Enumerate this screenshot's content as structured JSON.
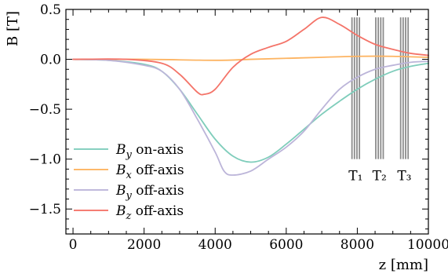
{
  "chart_data": {
    "type": "line",
    "xlabel": "z [mm]",
    "ylabel": "B [T]",
    "xlim": [
      -200,
      10000
    ],
    "ylim": [
      -1.75,
      0.5
    ],
    "x_ticks": [
      0,
      2000,
      4000,
      6000,
      8000,
      10000
    ],
    "y_ticks": [
      0.5,
      0.0,
      -0.5,
      -1.0,
      -1.5
    ],
    "x_tick_labels": [
      "0",
      "2000",
      "4000",
      "6000",
      "8000",
      "10000"
    ],
    "y_tick_labels": [
      "0.5",
      "0.0",
      "−0.5",
      "−1.0",
      "−1.5"
    ],
    "legend_position": "lower-left",
    "series": [
      {
        "name": "B_y on-axis",
        "legend_main": "B",
        "legend_sub": "y",
        "legend_suffix": " on-axis",
        "color": "#7fcdbb",
        "points": [
          [
            0,
            0.0
          ],
          [
            1000,
            -0.01
          ],
          [
            2000,
            -0.05
          ],
          [
            2500,
            -0.12
          ],
          [
            3000,
            -0.3
          ],
          [
            3500,
            -0.55
          ],
          [
            4000,
            -0.8
          ],
          [
            4500,
            -0.97
          ],
          [
            5000,
            -1.03
          ],
          [
            5500,
            -0.98
          ],
          [
            6000,
            -0.85
          ],
          [
            6500,
            -0.7
          ],
          [
            7000,
            -0.55
          ],
          [
            7500,
            -0.42
          ],
          [
            8000,
            -0.3
          ],
          [
            8500,
            -0.2
          ],
          [
            9000,
            -0.12
          ],
          [
            9500,
            -0.07
          ],
          [
            10000,
            -0.04
          ]
        ]
      },
      {
        "name": "B_x off-axis",
        "legend_main": "B",
        "legend_sub": "x",
        "legend_suffix": " off-axis",
        "color": "#fdb462",
        "points": [
          [
            0,
            0.0
          ],
          [
            2000,
            0.0
          ],
          [
            4000,
            -0.01
          ],
          [
            5000,
            0.0
          ],
          [
            6000,
            0.01
          ],
          [
            7000,
            0.02
          ],
          [
            8000,
            0.03
          ],
          [
            9000,
            0.03
          ],
          [
            10000,
            0.02
          ]
        ]
      },
      {
        "name": "B_y off-axis",
        "legend_main": "B",
        "legend_sub": "y",
        "legend_suffix": " off-axis",
        "color": "#bcb5d9",
        "points": [
          [
            0,
            0.0
          ],
          [
            1000,
            -0.01
          ],
          [
            2000,
            -0.06
          ],
          [
            2500,
            -0.12
          ],
          [
            3000,
            -0.3
          ],
          [
            3500,
            -0.6
          ],
          [
            4000,
            -0.93
          ],
          [
            4250,
            -1.12
          ],
          [
            4500,
            -1.16
          ],
          [
            5000,
            -1.12
          ],
          [
            5500,
            -1.0
          ],
          [
            6000,
            -0.88
          ],
          [
            6500,
            -0.72
          ],
          [
            7000,
            -0.5
          ],
          [
            7500,
            -0.3
          ],
          [
            8000,
            -0.18
          ],
          [
            8500,
            -0.1
          ],
          [
            9000,
            -0.06
          ],
          [
            9500,
            -0.03
          ],
          [
            10000,
            -0.02
          ]
        ]
      },
      {
        "name": "B_z off-axis",
        "legend_main": "B",
        "legend_sub": "z",
        "legend_suffix": " off-axis",
        "color": "#f47469",
        "points": [
          [
            0,
            0.0
          ],
          [
            1500,
            0.0
          ],
          [
            2500,
            -0.04
          ],
          [
            3000,
            -0.15
          ],
          [
            3500,
            -0.33
          ],
          [
            3700,
            -0.35
          ],
          [
            4000,
            -0.3
          ],
          [
            4500,
            -0.08
          ],
          [
            5000,
            0.05
          ],
          [
            5500,
            0.12
          ],
          [
            6000,
            0.18
          ],
          [
            6500,
            0.3
          ],
          [
            7000,
            0.42
          ],
          [
            7500,
            0.35
          ],
          [
            8000,
            0.24
          ],
          [
            8500,
            0.15
          ],
          [
            9000,
            0.1
          ],
          [
            9500,
            0.06
          ],
          [
            10000,
            0.04
          ]
        ]
      }
    ],
    "annotations": [
      {
        "label": "T₁",
        "x_lines": [
          7850,
          7920,
          7990,
          8060
        ]
      },
      {
        "label": "T₂",
        "x_lines": [
          8520,
          8590,
          8660,
          8730
        ]
      },
      {
        "label": "T₃",
        "x_lines": [
          9220,
          9290,
          9360,
          9430
        ]
      }
    ],
    "annotation_y_range": [
      -1.0,
      0.42
    ]
  }
}
